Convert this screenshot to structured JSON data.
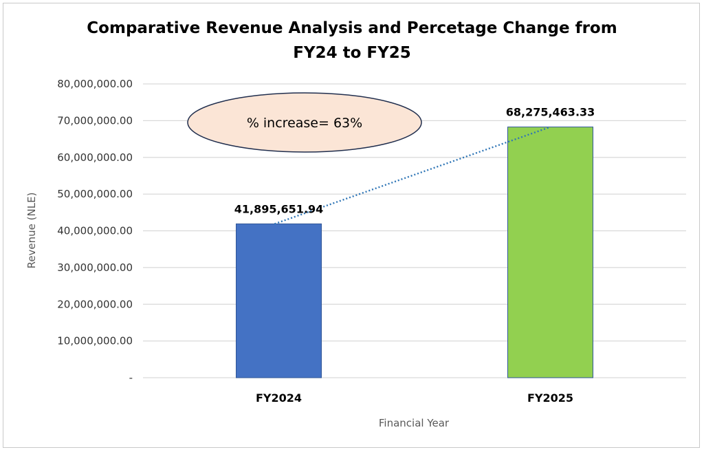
{
  "chart_data": {
    "type": "bar",
    "title_line1": "Comparative Revenue Analysis and Percetage Change from",
    "title_line2": "FY24 to FY25",
    "categories": [
      "FY2024",
      "FY2025"
    ],
    "values": [
      41895651.94,
      68275463.33
    ],
    "data_labels": [
      "41,895,651.94",
      "68,275,463.33"
    ],
    "bar_colors": [
      "#4472C4",
      "#92D050"
    ],
    "xlabel": "Financial Year",
    "ylabel": "Revenue (NLE)",
    "ylim": [
      0,
      80000000
    ],
    "y_ticks": [
      0,
      10000000,
      20000000,
      30000000,
      40000000,
      50000000,
      60000000,
      70000000,
      80000000
    ],
    "y_tick_labels": [
      "-",
      "10,000,000.00",
      "20,000,000.00",
      "30,000,000.00",
      "40,000,000.00",
      "50,000,000.00",
      "60,000,000.00",
      "70,000,000.00",
      "80,000,000.00"
    ],
    "grid": true,
    "trendline": {
      "style": "dotted",
      "color": "#2E75B6"
    },
    "annotation": {
      "text": "% increase= 63%",
      "fill": "#FBE5D6",
      "stroke": "#1F2D4D"
    }
  }
}
